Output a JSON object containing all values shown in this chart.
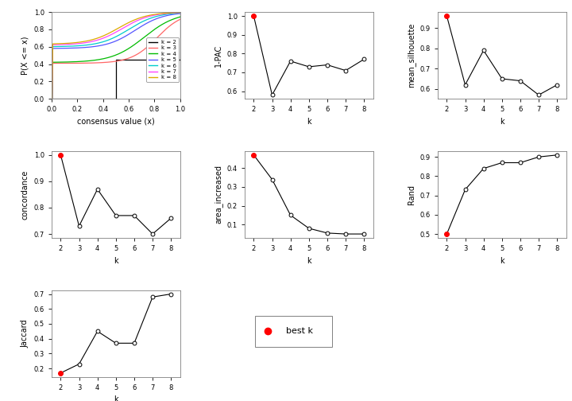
{
  "k_values": [
    2,
    3,
    4,
    5,
    6,
    7,
    8
  ],
  "pac_1": [
    1.0,
    0.58,
    0.76,
    0.73,
    0.74,
    0.71,
    0.77
  ],
  "mean_silhouette": [
    0.96,
    0.62,
    0.79,
    0.65,
    0.64,
    0.57,
    0.62
  ],
  "concordance": [
    1.0,
    0.73,
    0.87,
    0.77,
    0.77,
    0.7,
    0.76
  ],
  "area_increased": [
    0.47,
    0.34,
    0.15,
    0.08,
    0.055,
    0.05,
    0.05
  ],
  "rand": [
    0.5,
    0.73,
    0.84,
    0.87,
    0.87,
    0.9,
    0.91
  ],
  "jaccard": [
    0.17,
    0.23,
    0.45,
    0.37,
    0.37,
    0.68,
    0.7
  ],
  "best_k": 2,
  "cdf_colors": [
    "#000000",
    "#FF6666",
    "#00BB00",
    "#5555FF",
    "#00CCCC",
    "#FF44FF",
    "#DDAA00"
  ],
  "cdf_labels": [
    "k = 2",
    "k = 3",
    "k = 4",
    "k = 5",
    "k = 6",
    "k = 7",
    "k = 8"
  ]
}
